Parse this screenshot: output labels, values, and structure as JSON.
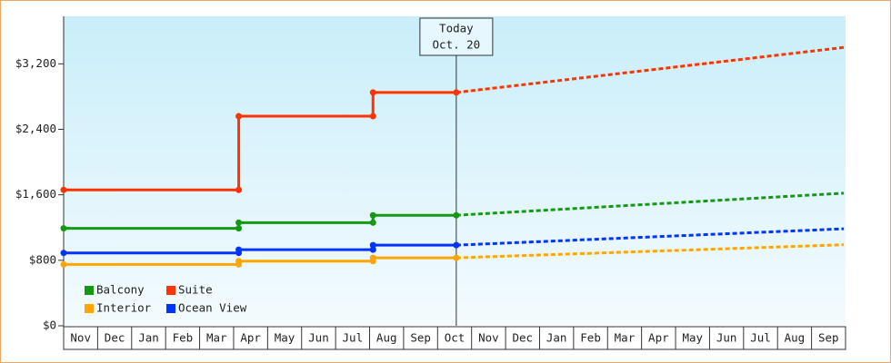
{
  "chart_data": {
    "type": "line",
    "xlim": [
      0,
      23
    ],
    "ylim": [
      0,
      3780
    ],
    "xticks": [
      {
        "value": 0.5,
        "label": "Nov"
      },
      {
        "value": 1.5,
        "label": "Dec"
      },
      {
        "value": 2.5,
        "label": "Jan"
      },
      {
        "value": 3.5,
        "label": "Feb"
      },
      {
        "value": 4.5,
        "label": "Mar"
      },
      {
        "value": 5.5,
        "label": "Apr"
      },
      {
        "value": 6.5,
        "label": "May"
      },
      {
        "value": 7.5,
        "label": "Jun"
      },
      {
        "value": 8.5,
        "label": "Jul"
      },
      {
        "value": 9.5,
        "label": "Aug"
      },
      {
        "value": 10.5,
        "label": "Sep"
      },
      {
        "value": 11.5,
        "label": "Oct"
      },
      {
        "value": 12.5,
        "label": "Nov"
      },
      {
        "value": 13.5,
        "label": "Dec"
      },
      {
        "value": 14.5,
        "label": "Jan"
      },
      {
        "value": 15.5,
        "label": "Feb"
      },
      {
        "value": 16.5,
        "label": "Mar"
      },
      {
        "value": 17.5,
        "label": "Apr"
      },
      {
        "value": 18.5,
        "label": "May"
      },
      {
        "value": 19.5,
        "label": "Jun"
      },
      {
        "value": 20.5,
        "label": "Jul"
      },
      {
        "value": 21.5,
        "label": "Aug"
      },
      {
        "value": 22.5,
        "label": "Sep"
      }
    ],
    "yticks": [
      {
        "value": 0,
        "label": "$0"
      },
      {
        "value": 800,
        "label": "$800"
      },
      {
        "value": 1600,
        "label": "$1,600"
      },
      {
        "value": 2400,
        "label": "$2,400"
      },
      {
        "value": 3200,
        "label": "$3,200"
      }
    ],
    "today": {
      "value": 11.55,
      "label": "Today",
      "date": "Oct. 20"
    },
    "series": [
      {
        "name": "Balcony",
        "color": "#159915",
        "x": [
          0,
          5.15,
          5.15,
          9.1,
          9.1,
          11.55,
          22.95
        ],
        "values": [
          1190,
          1190,
          1260,
          1260,
          1350,
          1350,
          1620
        ]
      },
      {
        "name": "Suite",
        "color": "#ff3300",
        "x": [
          0,
          5.15,
          5.15,
          9.1,
          9.1,
          11.55,
          22.95
        ],
        "values": [
          1660,
          1660,
          2560,
          2560,
          2850,
          2850,
          3400
        ]
      },
      {
        "name": "Interior",
        "color": "#ffa500",
        "x": [
          0,
          5.15,
          5.15,
          9.1,
          9.1,
          11.55,
          22.95
        ],
        "values": [
          750,
          750,
          790,
          790,
          830,
          830,
          990
        ]
      },
      {
        "name": "Ocean View",
        "color": "#0033ff",
        "x": [
          0,
          5.15,
          5.15,
          9.1,
          9.1,
          11.55,
          22.95
        ],
        "values": [
          890,
          890,
          930,
          930,
          985,
          985,
          1185
        ]
      }
    ]
  }
}
